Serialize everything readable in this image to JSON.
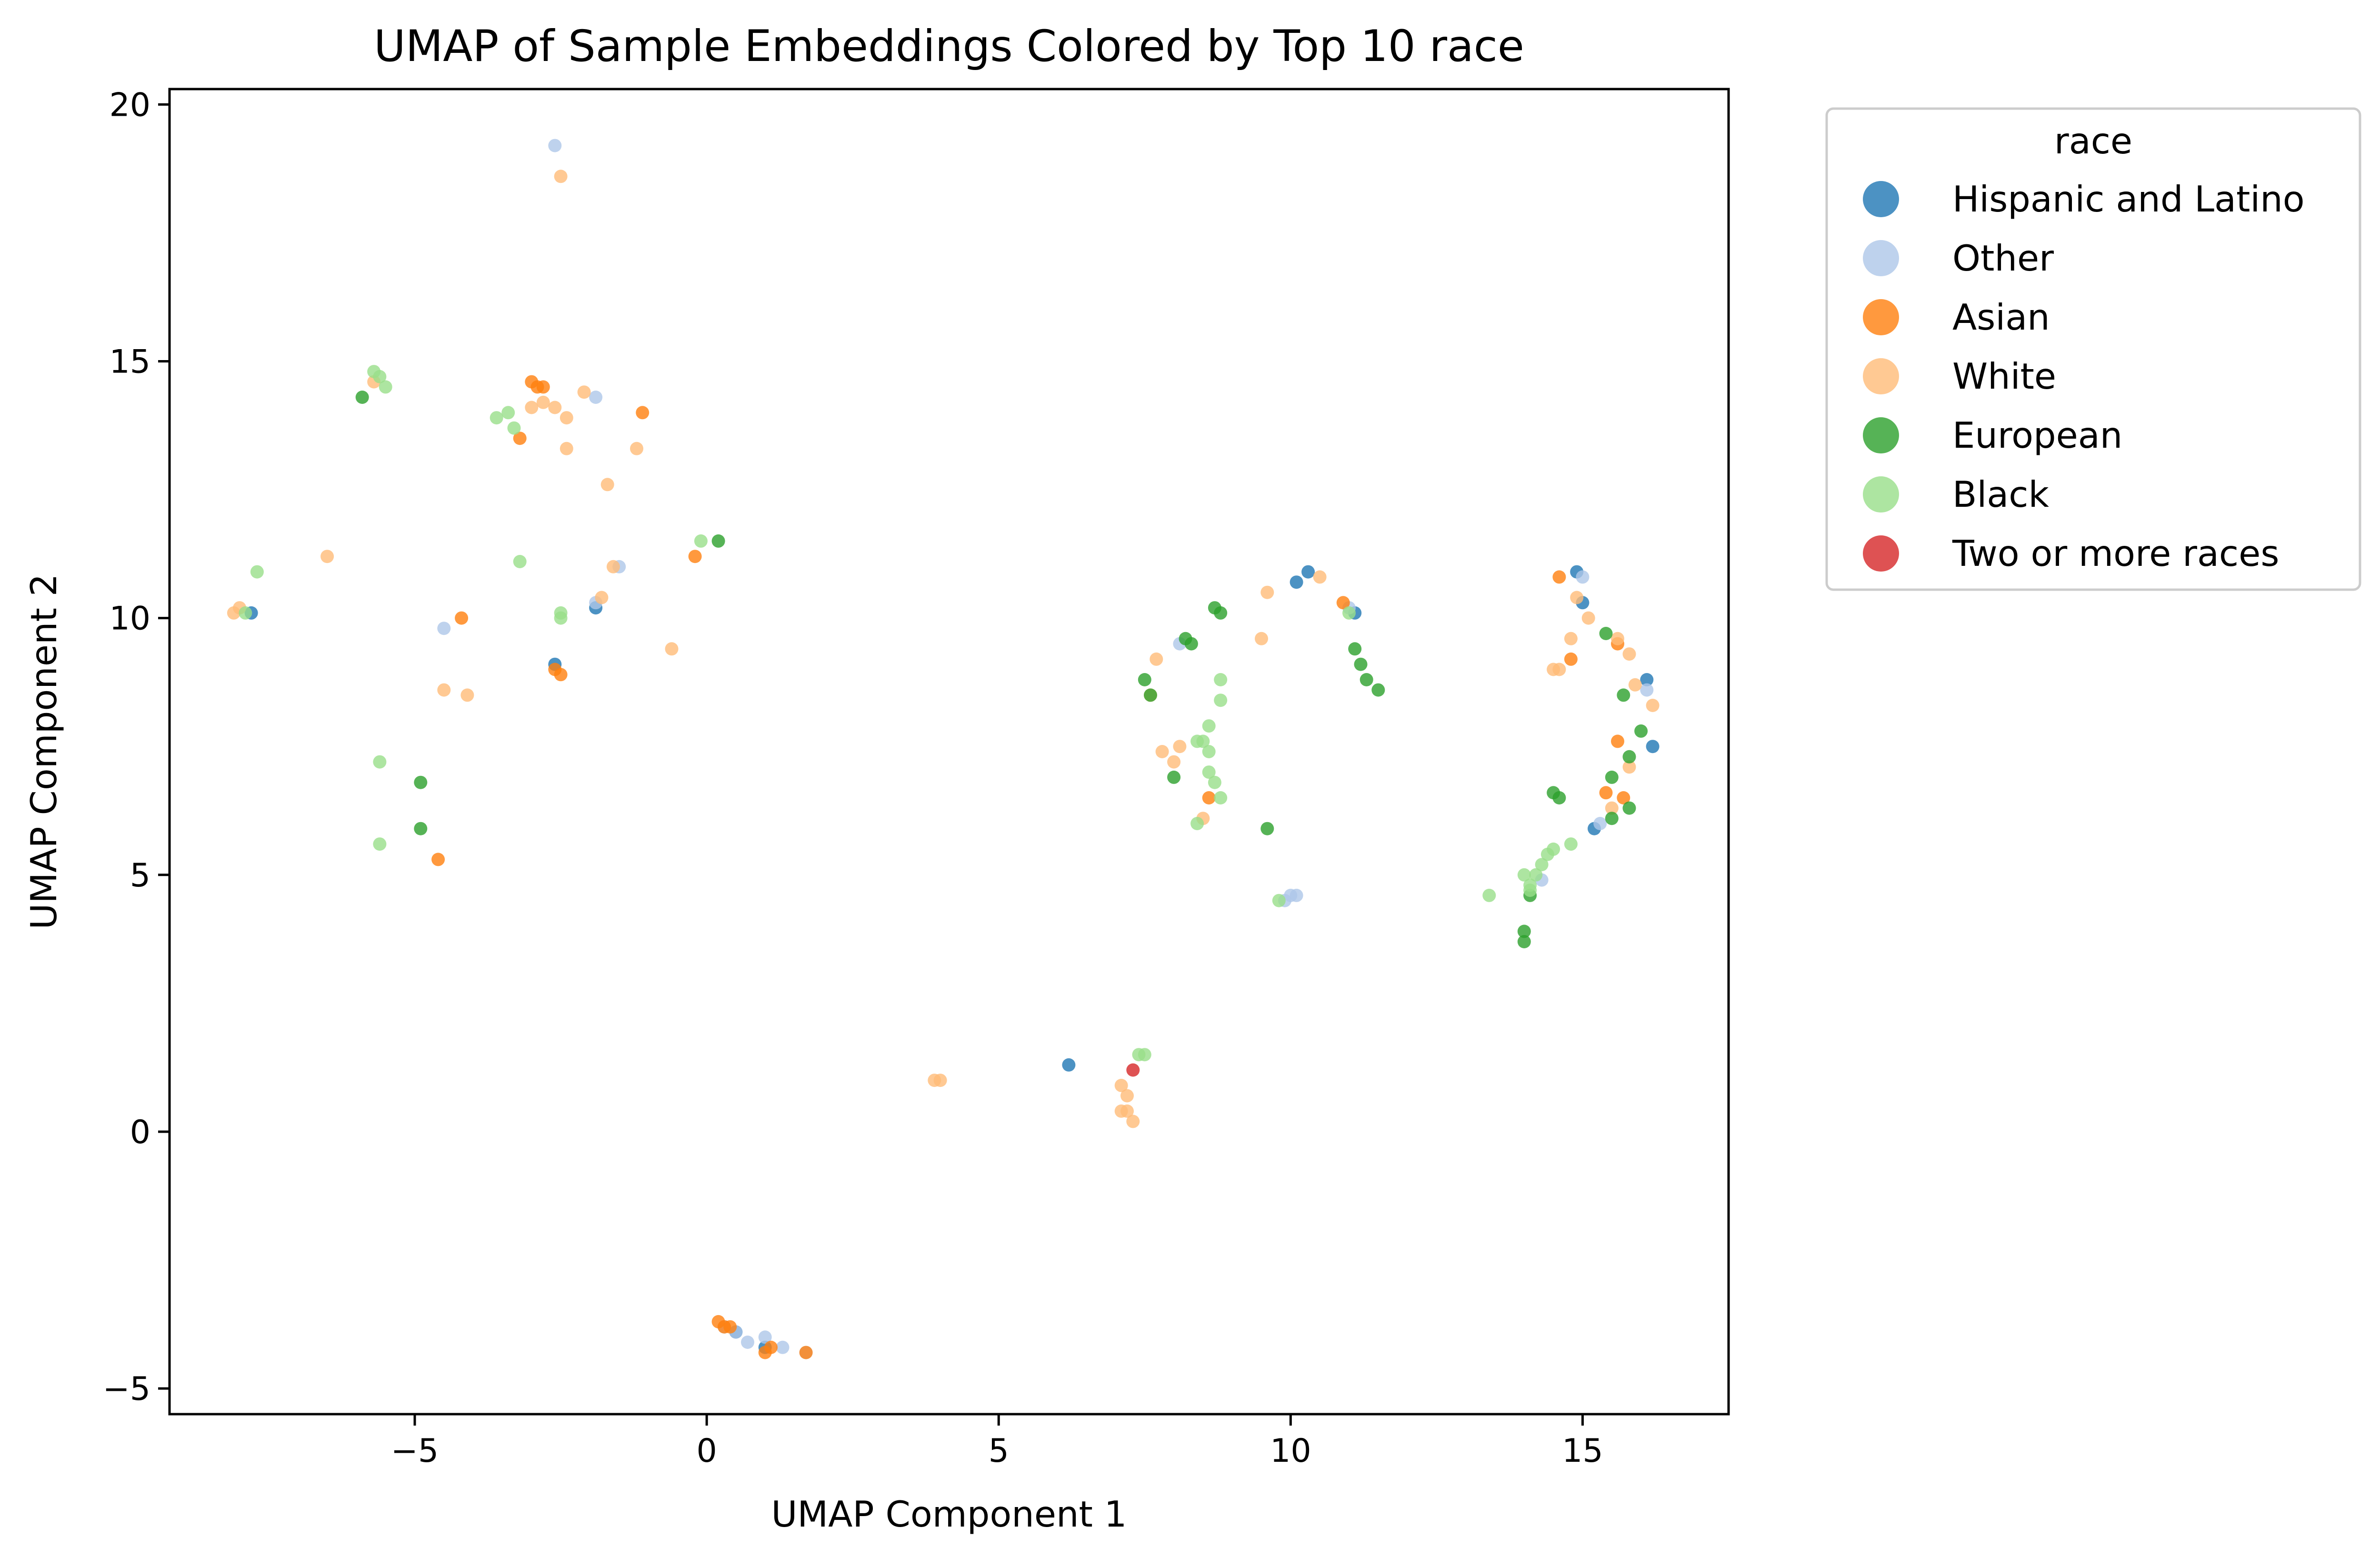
{
  "chart_data": {
    "type": "scatter",
    "title": "UMAP of Sample Embeddings Colored by Top 10 race",
    "xlabel": "UMAP Component 1",
    "ylabel": "UMAP Component 2",
    "xlim": [
      -9.2,
      17.5
    ],
    "ylim": [
      -5.5,
      20.3
    ],
    "xticks": [
      -5,
      0,
      5,
      10,
      15
    ],
    "yticks": [
      -5,
      0,
      5,
      10,
      15,
      20
    ],
    "xtick_labels": [
      "−5",
      "0",
      "5",
      "10",
      "15"
    ],
    "ytick_labels": [
      "−5",
      "0",
      "5",
      "10",
      "15",
      "20"
    ],
    "grid": false,
    "legend": {
      "title": "race",
      "placement": "outside-right-top"
    },
    "series": [
      {
        "name": "Hispanic and Latino",
        "color": "#1f77b4",
        "points": [
          [
            -2.6,
            9.1
          ],
          [
            -1.9,
            10.2
          ],
          [
            -7.8,
            10.1
          ],
          [
            6.2,
            1.3
          ],
          [
            10.3,
            10.9
          ],
          [
            10.1,
            10.7
          ],
          [
            11.1,
            10.1
          ],
          [
            14.9,
            10.9
          ],
          [
            15.0,
            10.3
          ],
          [
            16.2,
            7.5
          ],
          [
            16.1,
            8.8
          ],
          [
            15.2,
            5.9
          ],
          [
            1.0,
            -4.2
          ],
          [
            0.5,
            -3.9
          ]
        ]
      },
      {
        "name": "Other",
        "color": "#aec7e8",
        "points": [
          [
            -2.6,
            19.2
          ],
          [
            -1.9,
            14.3
          ],
          [
            -4.5,
            9.8
          ],
          [
            -1.5,
            11.0
          ],
          [
            -1.9,
            10.3
          ],
          [
            10.0,
            4.6
          ],
          [
            10.1,
            4.6
          ],
          [
            9.9,
            4.5
          ],
          [
            15.3,
            6.0
          ],
          [
            14.3,
            4.9
          ],
          [
            0.5,
            -3.9
          ],
          [
            0.7,
            -4.1
          ],
          [
            1.0,
            -4.0
          ],
          [
            1.3,
            -4.2
          ],
          [
            1.7,
            -4.3
          ],
          [
            0.3,
            -3.8
          ],
          [
            11.0,
            10.2
          ],
          [
            8.1,
            9.5
          ],
          [
            15.0,
            10.8
          ],
          [
            16.1,
            8.6
          ]
        ]
      },
      {
        "name": "Asian",
        "color": "#ff7f0e",
        "points": [
          [
            -3.0,
            14.6
          ],
          [
            -2.9,
            14.5
          ],
          [
            -2.8,
            14.5
          ],
          [
            -3.2,
            13.5
          ],
          [
            -1.1,
            14.0
          ],
          [
            -4.2,
            10.0
          ],
          [
            -2.6,
            9.0
          ],
          [
            -2.5,
            8.9
          ],
          [
            -4.6,
            5.3
          ],
          [
            -0.2,
            11.2
          ],
          [
            0.2,
            -3.7
          ],
          [
            0.3,
            -3.8
          ],
          [
            0.4,
            -3.8
          ],
          [
            1.1,
            -4.2
          ],
          [
            1.0,
            -4.3
          ],
          [
            1.7,
            -4.3
          ],
          [
            10.9,
            10.3
          ],
          [
            8.6,
            6.5
          ],
          [
            14.8,
            9.2
          ],
          [
            15.6,
            7.6
          ],
          [
            15.4,
            6.6
          ],
          [
            15.7,
            6.5
          ],
          [
            14.6,
            10.8
          ],
          [
            15.6,
            9.5
          ]
        ]
      },
      {
        "name": "White",
        "color": "#ffbb78",
        "points": [
          [
            -2.5,
            18.6
          ],
          [
            -3.0,
            14.1
          ],
          [
            -2.8,
            14.2
          ],
          [
            -2.6,
            14.1
          ],
          [
            -2.4,
            13.9
          ],
          [
            -2.1,
            14.4
          ],
          [
            -2.4,
            13.3
          ],
          [
            -1.2,
            13.3
          ],
          [
            -1.7,
            12.6
          ],
          [
            -1.6,
            11.0
          ],
          [
            -1.8,
            10.4
          ],
          [
            -6.5,
            11.2
          ],
          [
            -8.1,
            10.1
          ],
          [
            -8.0,
            10.2
          ],
          [
            -4.5,
            8.6
          ],
          [
            -4.1,
            8.5
          ],
          [
            -0.6,
            9.4
          ],
          [
            -5.7,
            14.6
          ],
          [
            3.9,
            1.0
          ],
          [
            4.0,
            1.0
          ],
          [
            7.1,
            0.9
          ],
          [
            7.2,
            0.7
          ],
          [
            7.2,
            0.4
          ],
          [
            7.3,
            0.2
          ],
          [
            7.1,
            0.4
          ],
          [
            7.7,
            9.2
          ],
          [
            7.6,
            8.5
          ],
          [
            7.8,
            7.4
          ],
          [
            8.0,
            7.2
          ],
          [
            8.1,
            7.5
          ],
          [
            8.5,
            6.1
          ],
          [
            9.5,
            9.6
          ],
          [
            9.6,
            10.5
          ],
          [
            10.5,
            10.8
          ],
          [
            14.5,
            9.0
          ],
          [
            14.6,
            9.0
          ],
          [
            14.8,
            9.6
          ],
          [
            15.1,
            10.0
          ],
          [
            15.6,
            9.6
          ],
          [
            15.8,
            9.3
          ],
          [
            15.9,
            8.7
          ],
          [
            16.2,
            8.3
          ],
          [
            15.8,
            7.1
          ],
          [
            15.5,
            6.3
          ],
          [
            14.9,
            10.4
          ]
        ]
      },
      {
        "name": "European",
        "color": "#2ca02c",
        "points": [
          [
            -5.9,
            14.3
          ],
          [
            0.2,
            11.5
          ],
          [
            -4.9,
            6.8
          ],
          [
            -4.9,
            5.9
          ],
          [
            7.5,
            8.8
          ],
          [
            7.6,
            8.5
          ],
          [
            8.2,
            9.6
          ],
          [
            8.3,
            9.5
          ],
          [
            8.7,
            10.2
          ],
          [
            8.8,
            10.1
          ],
          [
            8.0,
            6.9
          ],
          [
            9.6,
            5.9
          ],
          [
            11.1,
            9.4
          ],
          [
            11.2,
            9.1
          ],
          [
            11.3,
            8.8
          ],
          [
            11.5,
            8.6
          ],
          [
            14.0,
            3.9
          ],
          [
            14.0,
            3.7
          ],
          [
            14.1,
            4.6
          ],
          [
            14.5,
            6.6
          ],
          [
            14.6,
            6.5
          ],
          [
            15.4,
            9.7
          ],
          [
            15.5,
            6.9
          ],
          [
            15.7,
            8.5
          ],
          [
            15.8,
            7.3
          ],
          [
            16.0,
            7.8
          ],
          [
            15.5,
            6.1
          ],
          [
            15.8,
            6.3
          ]
        ]
      },
      {
        "name": "Black",
        "color": "#98df8a",
        "points": [
          [
            -5.7,
            14.8
          ],
          [
            -5.6,
            14.7
          ],
          [
            -5.5,
            14.5
          ],
          [
            -3.6,
            13.9
          ],
          [
            -3.4,
            14.0
          ],
          [
            -3.3,
            13.7
          ],
          [
            -3.2,
            11.1
          ],
          [
            -2.5,
            10.0
          ],
          [
            -2.5,
            10.1
          ],
          [
            -7.7,
            10.9
          ],
          [
            -7.9,
            10.1
          ],
          [
            -0.1,
            11.5
          ],
          [
            -5.6,
            7.2
          ],
          [
            -5.6,
            5.6
          ],
          [
            7.4,
            1.5
          ],
          [
            7.5,
            1.5
          ],
          [
            8.6,
            7.9
          ],
          [
            8.5,
            7.6
          ],
          [
            8.8,
            8.8
          ],
          [
            8.8,
            8.4
          ],
          [
            8.6,
            7.0
          ],
          [
            8.7,
            6.8
          ],
          [
            8.8,
            6.5
          ],
          [
            8.4,
            6.0
          ],
          [
            8.6,
            7.4
          ],
          [
            8.4,
            7.6
          ],
          [
            9.8,
            4.5
          ],
          [
            11.0,
            10.1
          ],
          [
            13.4,
            4.6
          ],
          [
            14.0,
            5.0
          ],
          [
            14.1,
            4.7
          ],
          [
            14.2,
            5.0
          ],
          [
            14.3,
            5.2
          ],
          [
            14.4,
            5.4
          ],
          [
            14.5,
            5.5
          ],
          [
            14.8,
            5.6
          ],
          [
            14.1,
            4.8
          ]
        ]
      },
      {
        "name": "Two or more races",
        "color": "#d62728",
        "points": [
          [
            7.3,
            1.2
          ]
        ]
      }
    ]
  }
}
